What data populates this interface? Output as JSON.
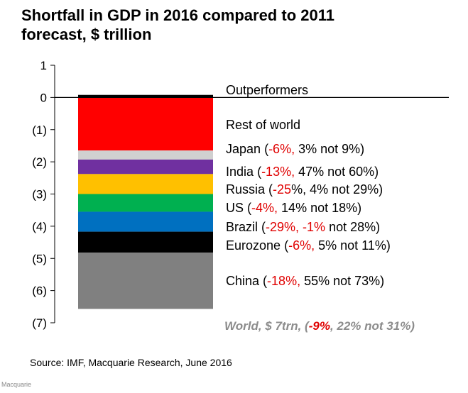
{
  "title": {
    "line1": "Shortfall in GDP in 2016 compared to 2011",
    "line2": "forecast, $ trillion"
  },
  "chart_data": {
    "type": "bar",
    "stacked": true,
    "title": "Shortfall in GDP in 2016 compared to 2011 forecast, $ trillion",
    "ylim": [
      -7,
      1
    ],
    "yticks": [
      1,
      0,
      -1,
      -2,
      -3,
      -4,
      -5,
      -6,
      -7
    ],
    "ytick_labels": [
      "1",
      "0",
      "(1)",
      "(2)",
      "(3)",
      "(4)",
      "(5)",
      "(6)",
      "(7)"
    ],
    "units": "$ trillion",
    "segments": [
      {
        "name": "Outperformers",
        "value": 0.08,
        "color": "#000000"
      },
      {
        "name": "Rest of world",
        "value": -1.65,
        "color": "#ff0000"
      },
      {
        "name": "Japan",
        "value": -0.28,
        "color": "#d0d0d0"
      },
      {
        "name": "India",
        "value": -0.45,
        "color": "#7030a0"
      },
      {
        "name": "Russia",
        "value": -0.62,
        "color": "#ffc000"
      },
      {
        "name": "US",
        "value": -0.55,
        "color": "#00b050"
      },
      {
        "name": "Brazil",
        "value": -0.62,
        "color": "#0070c0"
      },
      {
        "name": "Eurozone",
        "value": -0.65,
        "color": "#000000"
      },
      {
        "name": "China",
        "value": -1.75,
        "color": "#808080"
      }
    ]
  },
  "legend": [
    {
      "name": "Outperformers"
    },
    {
      "name": "Rest of world"
    },
    {
      "name": "Japan",
      "open": "(",
      "neg": "-6%,",
      "rest": " 3% not 9%)"
    },
    {
      "name": "India",
      "open": "(",
      "neg": "-13%,",
      "rest": " 47% not 60%)"
    },
    {
      "name": "Russia",
      "open": "(",
      "neg": "-25",
      "rest": "%, 4% not 29%)"
    },
    {
      "name": "US",
      "open": "(",
      "neg": "-4%,",
      "rest": " 14% not 18%)"
    },
    {
      "name": "Brazil",
      "open": "(",
      "neg": "-29%, -1%",
      "rest": " not 28%)"
    },
    {
      "name": "Eurozone",
      "open": "(",
      "neg": "-6%,",
      "rest": " 5% not 11%)"
    },
    {
      "name": "China",
      "open": "(",
      "neg": "-18%,",
      "rest": " 55% not 73%)"
    }
  ],
  "world": {
    "prefix": "World, $ 7trn, (",
    "neg": "-9%",
    "rest": ", 22% not 31%)"
  },
  "source": "Source: IMF, Macquarie Research, June 2016",
  "footer": "Macquarie"
}
